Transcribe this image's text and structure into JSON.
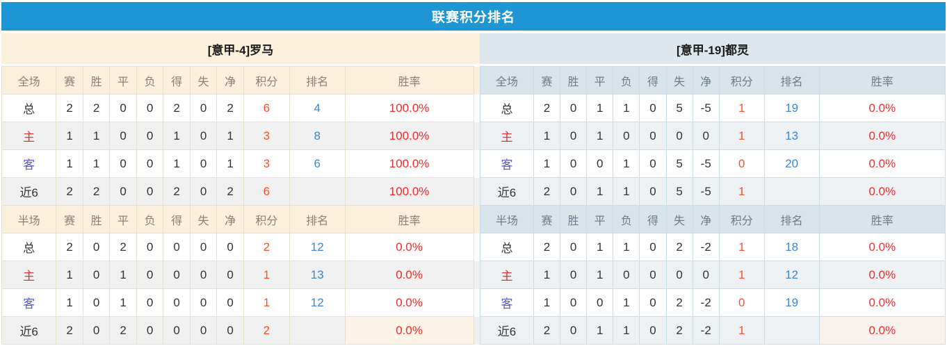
{
  "title": "联赛积分排名",
  "colors": {
    "title_bar": "#1e96d3",
    "left_header_bg": "#fbf0da",
    "left_header_text": "#8b8273",
    "left_stripe": "#f0f0f0",
    "right_header_bg": "#dce6ec",
    "right_colhead_bg": "#d9e3ea",
    "right_header_text": "#6e7c8a",
    "right_stripe": "#eef1f3",
    "home_label": "#dd3333",
    "away_label": "#5555d6",
    "points": "#f4512f",
    "rank": "#3e86cc",
    "rate": "#ee2c2c",
    "left_rate_highlight": "#fcf4e6",
    "right_rate_highlight": "#f9f1ed"
  },
  "panels": [
    {
      "side": "left",
      "team": "[意甲-4]罗马",
      "sections": [
        {
          "header": [
            "全场",
            "赛",
            "胜",
            "平",
            "负",
            "得",
            "失",
            "净",
            "积分",
            "排名",
            "胜率"
          ],
          "rows": [
            {
              "label": "总",
              "type": "total",
              "cells": [
                "2",
                "2",
                "0",
                "0",
                "2",
                "0",
                "2"
              ],
              "points": "6",
              "rank": "4",
              "rate": "100.0%",
              "rate_hl": false
            },
            {
              "label": "主",
              "type": "home",
              "cells": [
                "1",
                "1",
                "0",
                "0",
                "1",
                "0",
                "1"
              ],
              "points": "3",
              "rank": "8",
              "rate": "100.0%",
              "rate_hl": false
            },
            {
              "label": "客",
              "type": "away",
              "cells": [
                "1",
                "1",
                "0",
                "0",
                "1",
                "0",
                "1"
              ],
              "points": "3",
              "rank": "6",
              "rate": "100.0%",
              "rate_hl": false
            },
            {
              "label": "近6",
              "type": "last6",
              "cells": [
                "2",
                "2",
                "0",
                "0",
                "2",
                "0",
                "2"
              ],
              "points": "6",
              "rank": "",
              "rate": "100.0%",
              "rate_hl": false
            }
          ]
        },
        {
          "header": [
            "半场",
            "赛",
            "胜",
            "平",
            "负",
            "得",
            "失",
            "净",
            "积分",
            "排名",
            "胜率"
          ],
          "rows": [
            {
              "label": "总",
              "type": "total",
              "cells": [
                "2",
                "0",
                "2",
                "0",
                "0",
                "0",
                "0"
              ],
              "points": "2",
              "rank": "12",
              "rate": "0.0%",
              "rate_hl": false
            },
            {
              "label": "主",
              "type": "home",
              "cells": [
                "1",
                "0",
                "1",
                "0",
                "0",
                "0",
                "0"
              ],
              "points": "1",
              "rank": "13",
              "rate": "0.0%",
              "rate_hl": false
            },
            {
              "label": "客",
              "type": "away",
              "cells": [
                "1",
                "0",
                "1",
                "0",
                "0",
                "0",
                "0"
              ],
              "points": "1",
              "rank": "12",
              "rate": "0.0%",
              "rate_hl": false
            },
            {
              "label": "近6",
              "type": "last6",
              "cells": [
                "2",
                "0",
                "2",
                "0",
                "0",
                "0",
                "0"
              ],
              "points": "2",
              "rank": "",
              "rate": "0.0%",
              "rate_hl": true
            }
          ]
        }
      ]
    },
    {
      "side": "right",
      "team": "[意甲-19]都灵",
      "sections": [
        {
          "header": [
            "全场",
            "赛",
            "胜",
            "平",
            "负",
            "得",
            "失",
            "净",
            "积分",
            "排名",
            "胜率"
          ],
          "rows": [
            {
              "label": "总",
              "type": "total",
              "cells": [
                "2",
                "0",
                "1",
                "1",
                "0",
                "5",
                "-5"
              ],
              "points": "1",
              "rank": "19",
              "rate": "0.0%",
              "rate_hl": false
            },
            {
              "label": "主",
              "type": "home",
              "cells": [
                "1",
                "0",
                "1",
                "0",
                "0",
                "0",
                "0"
              ],
              "points": "1",
              "rank": "13",
              "rate": "0.0%",
              "rate_hl": false
            },
            {
              "label": "客",
              "type": "away",
              "cells": [
                "1",
                "0",
                "0",
                "1",
                "0",
                "5",
                "-5"
              ],
              "points": "0",
              "rank": "20",
              "rate": "0.0%",
              "rate_hl": false
            },
            {
              "label": "近6",
              "type": "last6",
              "cells": [
                "2",
                "0",
                "1",
                "1",
                "0",
                "5",
                "-5"
              ],
              "points": "1",
              "rank": "",
              "rate": "0.0%",
              "rate_hl": false
            }
          ]
        },
        {
          "header": [
            "半场",
            "赛",
            "胜",
            "平",
            "负",
            "得",
            "失",
            "净",
            "积分",
            "排名",
            "胜率"
          ],
          "rows": [
            {
              "label": "总",
              "type": "total",
              "cells": [
                "2",
                "0",
                "1",
                "1",
                "0",
                "2",
                "-2"
              ],
              "points": "1",
              "rank": "18",
              "rate": "0.0%",
              "rate_hl": false
            },
            {
              "label": "主",
              "type": "home",
              "cells": [
                "1",
                "0",
                "1",
                "0",
                "0",
                "0",
                "0"
              ],
              "points": "1",
              "rank": "12",
              "rate": "0.0%",
              "rate_hl": false
            },
            {
              "label": "客",
              "type": "away",
              "cells": [
                "1",
                "0",
                "0",
                "1",
                "0",
                "2",
                "-2"
              ],
              "points": "0",
              "rank": "19",
              "rate": "0.0%",
              "rate_hl": false
            },
            {
              "label": "近6",
              "type": "last6",
              "cells": [
                "2",
                "0",
                "1",
                "1",
                "0",
                "2",
                "-2"
              ],
              "points": "1",
              "rank": "",
              "rate": "0.0%",
              "rate_hl": true
            }
          ]
        }
      ]
    }
  ]
}
